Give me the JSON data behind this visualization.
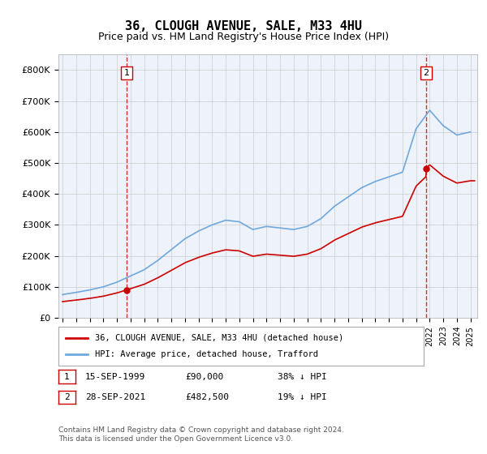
{
  "title": "36, CLOUGH AVENUE, SALE, M33 4HU",
  "subtitle": "Price paid vs. HM Land Registry's House Price Index (HPI)",
  "ylabel_ticks": [
    "£0",
    "£100K",
    "£200K",
    "£300K",
    "£400K",
    "£500K",
    "£600K",
    "£700K",
    "£800K"
  ],
  "ytick_values": [
    0,
    100000,
    200000,
    300000,
    400000,
    500000,
    600000,
    700000,
    800000
  ],
  "ylim": [
    0,
    850000
  ],
  "xlim_start": 1995.0,
  "xlim_end": 2025.5,
  "background_color": "#e8eef8",
  "plot_bg_color": "#eef2fa",
  "sale1_year": 1999.708,
  "sale1_price": 90000,
  "sale2_year": 2021.742,
  "sale2_price": 482500,
  "sale1_label": "1",
  "sale2_label": "2",
  "legend_line1": "36, CLOUGH AVENUE, SALE, M33 4HU (detached house)",
  "legend_line2": "HPI: Average price, detached house, Trafford",
  "table_row1": [
    "1",
    "15-SEP-1999",
    "£90,000",
    "38% ↓ HPI"
  ],
  "table_row2": [
    "2",
    "28-SEP-2021",
    "£482,500",
    "19% ↓ HPI"
  ],
  "footnote": "Contains HM Land Registry data © Crown copyright and database right 2024.\nThis data is licensed under the Open Government Licence v3.0.",
  "hpi_color": "#6fa8dc",
  "price_color": "#cc0000",
  "dashed_line_color": "#cc0000",
  "grid_color": "#cccccc",
  "title_fontsize": 11,
  "subtitle_fontsize": 9,
  "tick_fontsize": 8
}
